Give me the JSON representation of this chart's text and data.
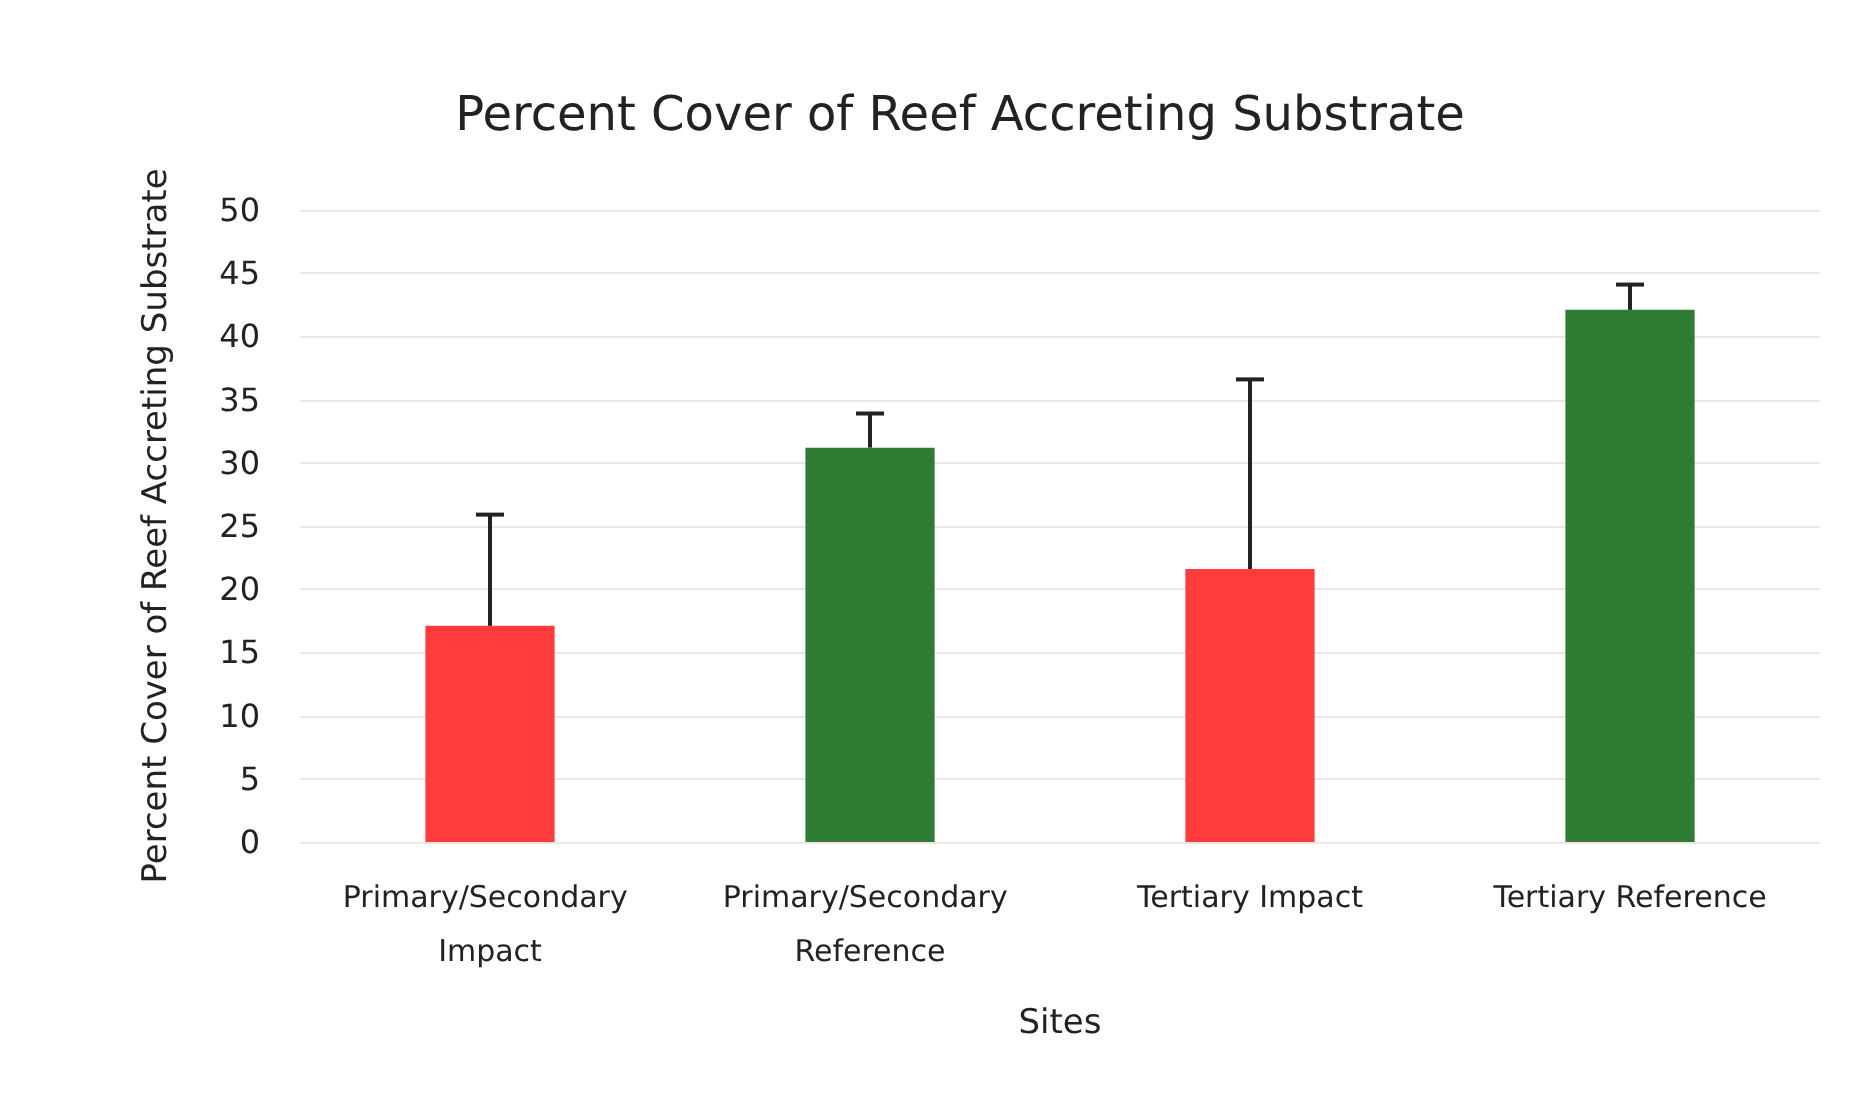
{
  "chart_data": {
    "type": "bar",
    "title": "Percent Cover of Reef Accreting Substrate",
    "xlabel": "Sites",
    "ylabel": "Percent Cover of Reef Accreting Substrate",
    "categories": [
      "Primary/Secondary Impact",
      "Primary/Secondary Reference",
      "Tertiary Impact",
      "Tertiary Reference"
    ],
    "values": [
      17.1,
      31.2,
      21.6,
      42.1
    ],
    "colors": [
      "#ff3b3b",
      "#2f7d34",
      "#ff3b3b",
      "#2f7d34"
    ],
    "errors": [
      [
        17.1,
        25.9
      ],
      [
        31.2,
        33.9
      ],
      [
        21.6,
        36.6
      ],
      [
        42.1,
        44.1
      ]
    ],
    "ylim": [
      0,
      50
    ],
    "yticks": [
      0,
      5,
      10,
      15,
      20,
      25,
      30,
      35,
      40,
      45,
      50
    ],
    "grid": "y"
  }
}
